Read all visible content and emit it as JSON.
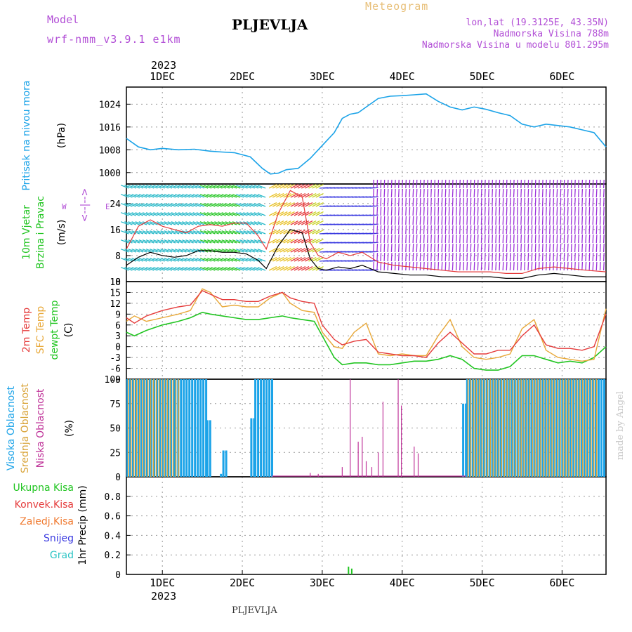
{
  "header": {
    "model_label": "Model",
    "model_name": "wrf-nmm_v3.9.1 e1km",
    "station": "PLJEVLJA",
    "meteogram": "Meteogram",
    "lonlat": "lon,lat (19.3125E, 43.35N)",
    "elev": "Nadmorska Visina 788m",
    "elev_model": "Nadmorska Visina u modelu 801.295m",
    "year_top": "2023",
    "year_bottom": "2023",
    "footer_station": "PLJEVLJA",
    "credit": "made by Angel"
  },
  "colors": {
    "pressure": "#1ba3e8",
    "wind_speed": "#000000",
    "gust": "#e53b3b",
    "temp2m": "#e53b3b",
    "sfc_temp": "#e8a838",
    "dewpt": "#22c522",
    "cloud_high": "#1ba3e8",
    "cloud_mid": "#d9a43a",
    "cloud_low": "#c0359a",
    "precip_total": "#22c522",
    "precip_conv": "#e53b3b",
    "precip_frz": "#f07a30",
    "precip_snow": "#3a3ae0",
    "precip_grad": "#2ec5c5"
  },
  "chart_data": [
    {
      "type": "line",
      "name": "pressure",
      "ylabel": [
        "Pritisak na nivou mora",
        "(hPa)"
      ],
      "x_ticks": [
        "1DEC",
        "2DEC",
        "3DEC",
        "4DEC",
        "5DEC",
        "6DEC"
      ],
      "xlim": [
        0.55,
        6.55
      ],
      "ylim": [
        996,
        1030
      ],
      "y_ticks": [
        1000,
        1008,
        1016,
        1024
      ],
      "grid": true,
      "x": [
        0.55,
        0.7,
        0.85,
        1.0,
        1.2,
        1.4,
        1.6,
        1.75,
        1.9,
        2.1,
        2.25,
        2.35,
        2.45,
        2.55,
        2.7,
        2.85,
        3.0,
        3.15,
        3.25,
        3.35,
        3.45,
        3.55,
        3.7,
        3.85,
        4.0,
        4.15,
        4.3,
        4.45,
        4.6,
        4.75,
        4.9,
        5.05,
        5.2,
        5.35,
        5.5,
        5.65,
        5.8,
        5.95,
        6.1,
        6.25,
        6.4,
        6.55
      ],
      "values": [
        1012,
        1009,
        1008,
        1008.5,
        1008,
        1008.2,
        1007.5,
        1007.2,
        1007,
        1005.5,
        1001.5,
        999.5,
        999.8,
        1001,
        1001.5,
        1005,
        1009.5,
        1014,
        1019,
        1020.5,
        1021,
        1023,
        1026,
        1026.8,
        1027,
        1027.3,
        1027.6,
        1025,
        1023,
        1022,
        1023,
        1022.2,
        1021,
        1020,
        1017,
        1016,
        1017,
        1016.5,
        1016,
        1015,
        1014,
        1009
      ]
    },
    {
      "type": "line",
      "name": "wind",
      "ylabel": [
        "10m Vjetar",
        "Brzina i Pravac",
        "(m/s)"
      ],
      "direction_key": [
        "W",
        "<--|-->",
        "E"
      ],
      "ylim": [
        0,
        30
      ],
      "y_ticks": [
        0,
        8,
        16,
        24
      ],
      "grid": true,
      "series": [
        {
          "id": "speed",
          "x": [
            0.55,
            0.7,
            0.85,
            1.0,
            1.15,
            1.3,
            1.45,
            1.6,
            1.75,
            1.9,
            2.05,
            2.2,
            2.3,
            2.45,
            2.6,
            2.75,
            2.85,
            2.95,
            3.05,
            3.2,
            3.35,
            3.5,
            3.7,
            3.9,
            4.1,
            4.3,
            4.5,
            4.7,
            4.9,
            5.1,
            5.3,
            5.5,
            5.7,
            5.9,
            6.1,
            6.3,
            6.55
          ],
          "values": [
            5,
            7.5,
            9,
            8,
            7.5,
            8,
            9.5,
            9.5,
            9,
            9,
            8.5,
            6.5,
            4,
            11,
            16,
            15,
            7,
            4,
            3.5,
            4.5,
            4,
            5,
            3,
            2.5,
            2,
            2,
            1.5,
            1.5,
            1.5,
            1.5,
            1,
            1,
            2,
            2.5,
            2,
            1.5,
            1.5
          ]
        },
        {
          "id": "gust",
          "x": [
            0.55,
            0.7,
            0.85,
            1.0,
            1.15,
            1.3,
            1.45,
            1.6,
            1.75,
            1.9,
            2.05,
            2.2,
            2.3,
            2.45,
            2.6,
            2.75,
            2.85,
            2.95,
            3.05,
            3.2,
            3.35,
            3.5,
            3.7,
            3.9,
            4.1,
            4.3,
            4.5,
            4.7,
            4.9,
            5.1,
            5.3,
            5.5,
            5.7,
            5.9,
            6.1,
            6.3,
            6.55
          ],
          "values": [
            10,
            17,
            19,
            17,
            16,
            15,
            17,
            17.5,
            17,
            18,
            18,
            14,
            10,
            21,
            28,
            26,
            12,
            8,
            7,
            9,
            8,
            9,
            6,
            5,
            4.5,
            4,
            3.5,
            3,
            3,
            3,
            2.5,
            2.5,
            4,
            4.5,
            4,
            3.5,
            3
          ]
        }
      ]
    },
    {
      "type": "line",
      "name": "temperature",
      "ylabel": [
        "2m Temp",
        "SFC Temp",
        "dewpt Temp",
        "(C)"
      ],
      "ylim": [
        -9,
        18
      ],
      "y_ticks": [
        -9,
        -6,
        -3,
        0,
        3,
        6,
        9,
        12,
        15,
        18
      ],
      "grid": true,
      "series": [
        {
          "id": "t2m",
          "x": [
            0.55,
            0.65,
            0.8,
            1.0,
            1.2,
            1.35,
            1.5,
            1.6,
            1.75,
            1.9,
            2.05,
            2.2,
            2.35,
            2.5,
            2.6,
            2.75,
            2.9,
            3.0,
            3.15,
            3.25,
            3.4,
            3.55,
            3.7,
            3.85,
            4.0,
            4.15,
            4.3,
            4.45,
            4.6,
            4.75,
            4.9,
            5.05,
            5.2,
            5.35,
            5.5,
            5.65,
            5.8,
            5.95,
            6.1,
            6.25,
            6.4,
            6.55
          ],
          "values": [
            8,
            6.5,
            8.5,
            10,
            11,
            11.5,
            15.5,
            14.5,
            13,
            13,
            12.5,
            12.5,
            14,
            15,
            13.5,
            12.5,
            12,
            6,
            2,
            0.5,
            1.5,
            2,
            -1.5,
            -2,
            -2.5,
            -2.5,
            -3,
            1,
            4,
            1,
            -2,
            -2,
            -1,
            -1,
            3,
            6,
            0.5,
            -0.5,
            -0.5,
            -1,
            0,
            9
          ]
        },
        {
          "id": "sfc",
          "x": [
            0.55,
            0.65,
            0.8,
            1.0,
            1.2,
            1.35,
            1.5,
            1.6,
            1.75,
            1.9,
            2.05,
            2.2,
            2.35,
            2.5,
            2.6,
            2.75,
            2.9,
            3.0,
            3.15,
            3.25,
            3.4,
            3.55,
            3.7,
            3.85,
            4.0,
            4.15,
            4.3,
            4.45,
            4.6,
            4.75,
            4.9,
            5.05,
            5.2,
            5.35,
            5.5,
            5.65,
            5.8,
            5.95,
            6.1,
            6.25,
            6.4,
            6.55
          ],
          "values": [
            7,
            8.5,
            7,
            8,
            9,
            10,
            16,
            15,
            11,
            11.5,
            11,
            11,
            13.5,
            15,
            12,
            10,
            9.5,
            4,
            0,
            -0.5,
            4,
            6.5,
            -2,
            -2.5,
            -2,
            -2.5,
            -2.5,
            3,
            7.5,
            0,
            -3,
            -3.5,
            -3,
            -2,
            5,
            7.5,
            -1,
            -3,
            -3.5,
            -4,
            -3.5,
            10.5
          ]
        },
        {
          "id": "dew",
          "x": [
            0.55,
            0.65,
            0.8,
            1.0,
            1.2,
            1.35,
            1.5,
            1.6,
            1.75,
            1.9,
            2.05,
            2.2,
            2.35,
            2.5,
            2.6,
            2.75,
            2.9,
            3.0,
            3.15,
            3.25,
            3.4,
            3.55,
            3.7,
            3.85,
            4.0,
            4.15,
            4.3,
            4.45,
            4.6,
            4.75,
            4.9,
            5.05,
            5.2,
            5.35,
            5.5,
            5.65,
            5.8,
            5.95,
            6.1,
            6.25,
            6.4,
            6.55
          ],
          "values": [
            4,
            3,
            4.5,
            6,
            7,
            8,
            9.5,
            9,
            8.5,
            8,
            7.5,
            7.5,
            8,
            8.5,
            8,
            7.5,
            7,
            3,
            -3,
            -5,
            -4.5,
            -4.5,
            -5,
            -5,
            -4.5,
            -4,
            -4,
            -3.5,
            -2.5,
            -3.5,
            -6,
            -6.5,
            -6.5,
            -5.5,
            -2.5,
            -2.5,
            -3.5,
            -4.5,
            -4,
            -4.5,
            -3,
            0
          ]
        }
      ]
    },
    {
      "type": "bar",
      "name": "cloudiness",
      "ylabel": [
        "Visoka Oblacnost",
        "Srednja Oblacnost",
        "Niska Oblacnost",
        "(%)"
      ],
      "ylim": [
        0,
        100
      ],
      "y_ticks": [
        0,
        25,
        50,
        75,
        100
      ],
      "grid": true,
      "high_segments": [
        [
          0.55,
          0.85,
          100
        ],
        [
          0.85,
          1.15,
          100
        ],
        [
          1.15,
          1.55,
          100
        ],
        [
          1.55,
          1.6,
          58
        ],
        [
          1.72,
          1.75,
          3
        ],
        [
          1.75,
          1.8,
          27
        ],
        [
          2.1,
          2.15,
          60
        ],
        [
          2.15,
          2.37,
          100
        ],
        [
          4.75,
          4.8,
          75
        ],
        [
          4.8,
          6.55,
          100
        ]
      ],
      "mid_segments": [
        [
          0.55,
          1.2,
          100
        ],
        [
          4.8,
          6.45,
          100
        ]
      ],
      "low_spikes": [
        [
          2.85,
          4
        ],
        [
          2.95,
          3
        ],
        [
          3.25,
          10
        ],
        [
          3.35,
          100
        ],
        [
          3.45,
          36
        ],
        [
          3.5,
          41
        ],
        [
          3.55,
          16
        ],
        [
          3.62,
          10
        ],
        [
          3.7,
          25
        ],
        [
          3.76,
          77
        ],
        [
          3.95,
          100
        ],
        [
          3.99,
          73
        ],
        [
          4.15,
          31
        ],
        [
          4.2,
          24
        ]
      ]
    },
    {
      "type": "bar",
      "name": "precipitation",
      "ylabel": [
        "1hr Precip (mm)"
      ],
      "legend": [
        "Ukupna Kisa",
        "Konvek.Kisa",
        "Zaledj.Kisa",
        "Snijeg",
        "Grad"
      ],
      "ylim": [
        0,
        1.0
      ],
      "y_ticks": [
        0,
        0.2,
        0.4,
        0.6,
        0.8
      ],
      "y_tick_labels": [
        "0",
        "0.2",
        "0.4",
        "0.6",
        "0.8"
      ],
      "grid": true,
      "bars": [
        [
          3.32,
          0.08
        ],
        [
          3.36,
          0.06
        ]
      ]
    }
  ]
}
